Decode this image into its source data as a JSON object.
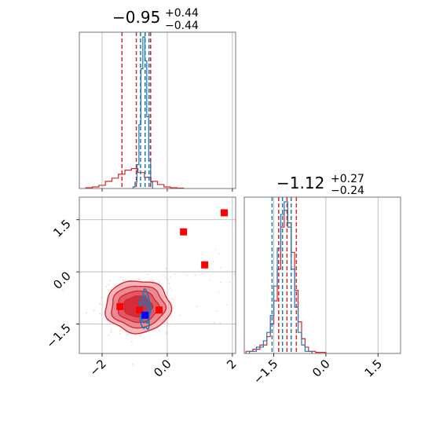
{
  "chart_data": [
    {
      "type": "histogram",
      "panel": "top-left (parameter 1 marginal)",
      "title": {
        "main": "−0.95",
        "upper": "+0.44",
        "lower": "−0.44"
      },
      "xlim": [
        -2.7,
        2.1
      ],
      "grid": true,
      "xticks": [
        -2,
        0,
        2
      ],
      "series": [
        {
          "color": "#d62728",
          "style": "step",
          "bin_edges": [
            -2.5,
            -2.3,
            -2.1,
            -1.9,
            -1.7,
            -1.5,
            -1.3,
            -1.1,
            -0.9,
            -0.7,
            -0.5,
            -0.3,
            -0.1,
            0.1,
            0.3,
            0.5
          ],
          "counts": [
            1,
            2,
            4,
            9,
            13,
            18,
            23,
            25,
            20,
            14,
            9,
            5,
            2,
            1,
            0.5
          ],
          "quantile_lines": [
            -1.39,
            -0.95,
            -0.51
          ]
        },
        {
          "color": "#1f77b4",
          "style": "step",
          "bin_edges": [
            -1.05,
            -0.99,
            -0.93,
            -0.87,
            -0.81,
            -0.75,
            -0.69,
            -0.63,
            -0.57,
            -0.51,
            -0.45
          ],
          "counts": [
            2,
            8,
            30,
            80,
            150,
            190,
            160,
            90,
            35,
            8
          ],
          "quantile_lines": [
            -0.82,
            -0.68,
            -0.56
          ]
        }
      ]
    },
    {
      "type": "contour-scatter",
      "panel": "bottom-left (joint distribution)",
      "xlim": [
        -2.7,
        2.1
      ],
      "ylim": [
        -2.35,
        2.15
      ],
      "grid": true,
      "xticks": [
        -2,
        0,
        2
      ],
      "yticks": [
        1.5,
        0.0,
        -1.5
      ],
      "red_markers": [
        {
          "x": 1.75,
          "y": 1.7
        },
        {
          "x": 0.5,
          "y": 1.15
        },
        {
          "x": 1.15,
          "y": 0.2
        },
        {
          "x": -1.45,
          "y": -1.0
        },
        {
          "x": -0.85,
          "y": -1.1
        },
        {
          "x": -0.25,
          "y": -1.1
        }
      ],
      "blue_markers": [
        {
          "x": -0.68,
          "y": -1.25
        }
      ],
      "red_density": {
        "center": [
          -0.9,
          -1.0
        ],
        "levels_semi_axes": [
          [
            0.43,
            0.3
          ],
          [
            0.62,
            0.45
          ],
          [
            0.82,
            0.6
          ],
          [
            1.0,
            0.75
          ]
        ]
      },
      "blue_density": {
        "center": [
          -0.68,
          -1.1
        ],
        "levels_semi_axes": [
          [
            0.07,
            0.22
          ],
          [
            0.12,
            0.38
          ],
          [
            0.16,
            0.55
          ]
        ]
      }
    },
    {
      "type": "histogram",
      "panel": "bottom-right (parameter 2 marginal)",
      "title": {
        "main": "−1.12",
        "upper": "+0.27",
        "lower": "−0.24"
      },
      "xlim": [
        -2.35,
        2.15
      ],
      "grid": true,
      "xticks": [
        -1.5,
        0.0,
        1.5
      ],
      "series": [
        {
          "color": "#d62728",
          "style": "step",
          "bin_edges": [
            -2.3,
            -2.1,
            -1.9,
            -1.7,
            -1.6,
            -1.5,
            -1.4,
            -1.3,
            -1.2,
            -1.1,
            -1.0,
            -0.9,
            -0.8,
            -0.7,
            -0.6,
            -0.5,
            -0.3,
            0.0
          ],
          "counts": [
            1,
            2,
            4,
            8,
            14,
            25,
            40,
            60,
            68,
            62,
            48,
            30,
            15,
            7,
            3,
            1,
            0.5
          ],
          "quantile_lines": [
            -1.36,
            -1.12,
            -0.85
          ]
        },
        {
          "color": "#1f77b4",
          "style": "step",
          "bin_edges": [
            -2.2,
            -2.0,
            -1.8,
            -1.7,
            -1.6,
            -1.5,
            -1.4,
            -1.3,
            -1.2,
            -1.1,
            -1.0,
            -0.9,
            -0.8,
            -0.7,
            -0.6,
            -0.4
          ],
          "counts": [
            1,
            3,
            6,
            10,
            18,
            32,
            50,
            66,
            72,
            60,
            40,
            22,
            10,
            4,
            1
          ],
          "quantile_lines": [
            -1.55,
            -1.25,
            -1.0
          ]
        }
      ]
    }
  ]
}
